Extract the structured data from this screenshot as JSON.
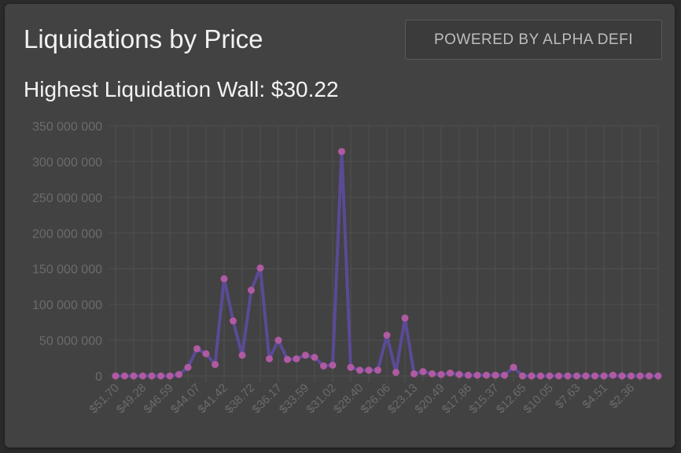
{
  "header": {
    "title": "Liquidations by Price",
    "subtitle": "Highest Liquidation Wall: $30.22",
    "button_label": "POWERED BY ALPHA DEFI"
  },
  "colors": {
    "background": "#424242",
    "line": "#5b4a96",
    "point": "#b05aa2",
    "grid": "#505050",
    "tick_text": "#6b6b6b"
  },
  "chart_data": {
    "type": "line",
    "title": "",
    "xlabel": "",
    "ylabel": "",
    "ylim": [
      0,
      350000000
    ],
    "y_ticks": [
      0,
      50000000,
      100000000,
      150000000,
      200000000,
      250000000,
      300000000,
      350000000
    ],
    "y_tick_labels": [
      "0",
      "50 000 000",
      "100 000 000",
      "150 000 000",
      "200 000 000",
      "250 000 000",
      "300 000 000",
      "350 000 000"
    ],
    "x_tick_labels": [
      "$51.70",
      "$49.28",
      "$46.59",
      "$44.07",
      "$41.42",
      "$38.72",
      "$36.17",
      "$33.59",
      "$31.02",
      "$28.40",
      "$26.06",
      "$23.13",
      "$20.49",
      "$17.86",
      "$15.37",
      "$12.65",
      "$10.05",
      "$7.63",
      "$4.51",
      "$2.36"
    ],
    "grid": true,
    "legend": "none",
    "series": [
      {
        "values": [
          0,
          0,
          0,
          0,
          0,
          0,
          0,
          2000000,
          12000000,
          38000000,
          31000000,
          16000000,
          136000000,
          77000000,
          29000000,
          120000000,
          151000000,
          24000000,
          50000000,
          23000000,
          24000000,
          29000000,
          26000000,
          14000000,
          15000000,
          314000000,
          12000000,
          8000000,
          8000000,
          8000000,
          57000000,
          5000000,
          81000000,
          3000000,
          6000000,
          3000000,
          2000000,
          4000000,
          2000000,
          1000000,
          1000000,
          1000000,
          1000000,
          1000000,
          12000000,
          0,
          0,
          0,
          0,
          0,
          0,
          0,
          0,
          0,
          0,
          1000000,
          0,
          0,
          0,
          0,
          0
        ]
      }
    ]
  }
}
